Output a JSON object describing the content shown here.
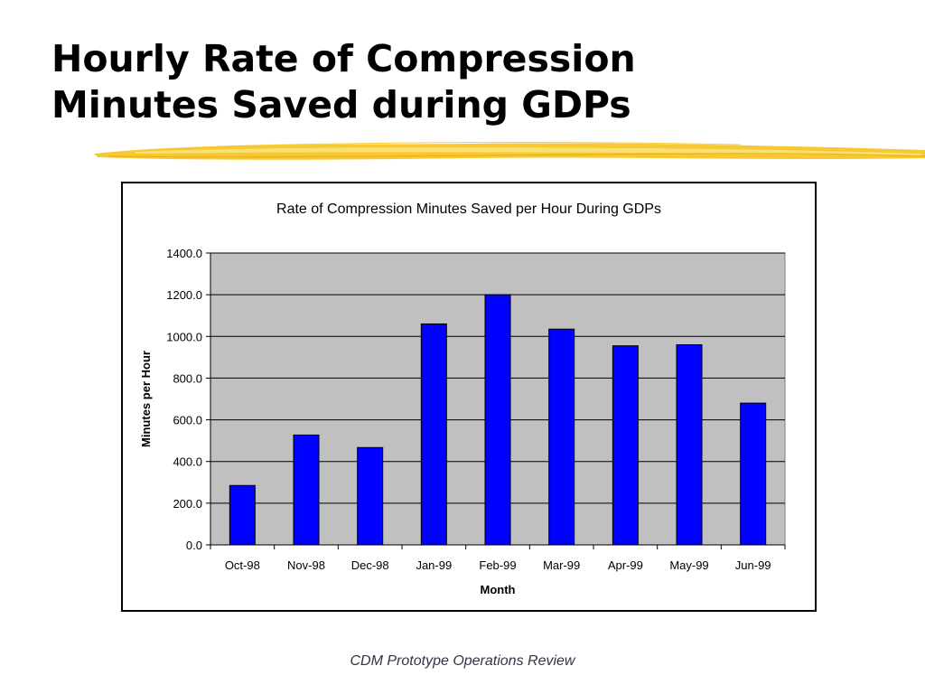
{
  "slide": {
    "title_line1": "Hourly Rate of Compression",
    "title_line2": "Minutes Saved during GDPs",
    "footer": "CDM Prototype Operations Review",
    "accent_color": "#F6C21C"
  },
  "chart_data": {
    "type": "bar",
    "title": "Rate of Compression Minutes Saved per Hour During GDPs",
    "xlabel": "Month",
    "ylabel": "Minutes per Hour",
    "categories": [
      "Oct-98",
      "Nov-98",
      "Dec-98",
      "Jan-99",
      "Feb-99",
      "Mar-99",
      "Apr-99",
      "May-99",
      "Jun-99"
    ],
    "values": [
      285,
      527,
      467,
      1060,
      1200,
      1035,
      955,
      960,
      680
    ],
    "ylim": [
      0,
      1400
    ],
    "yticks": [
      "0.0",
      "200.0",
      "400.0",
      "600.0",
      "800.0",
      "1000.0",
      "1200.0",
      "1400.0"
    ],
    "grid": true,
    "legend": "none",
    "bar_color": "#0000FF",
    "plot_background": "#C0C0C0"
  }
}
